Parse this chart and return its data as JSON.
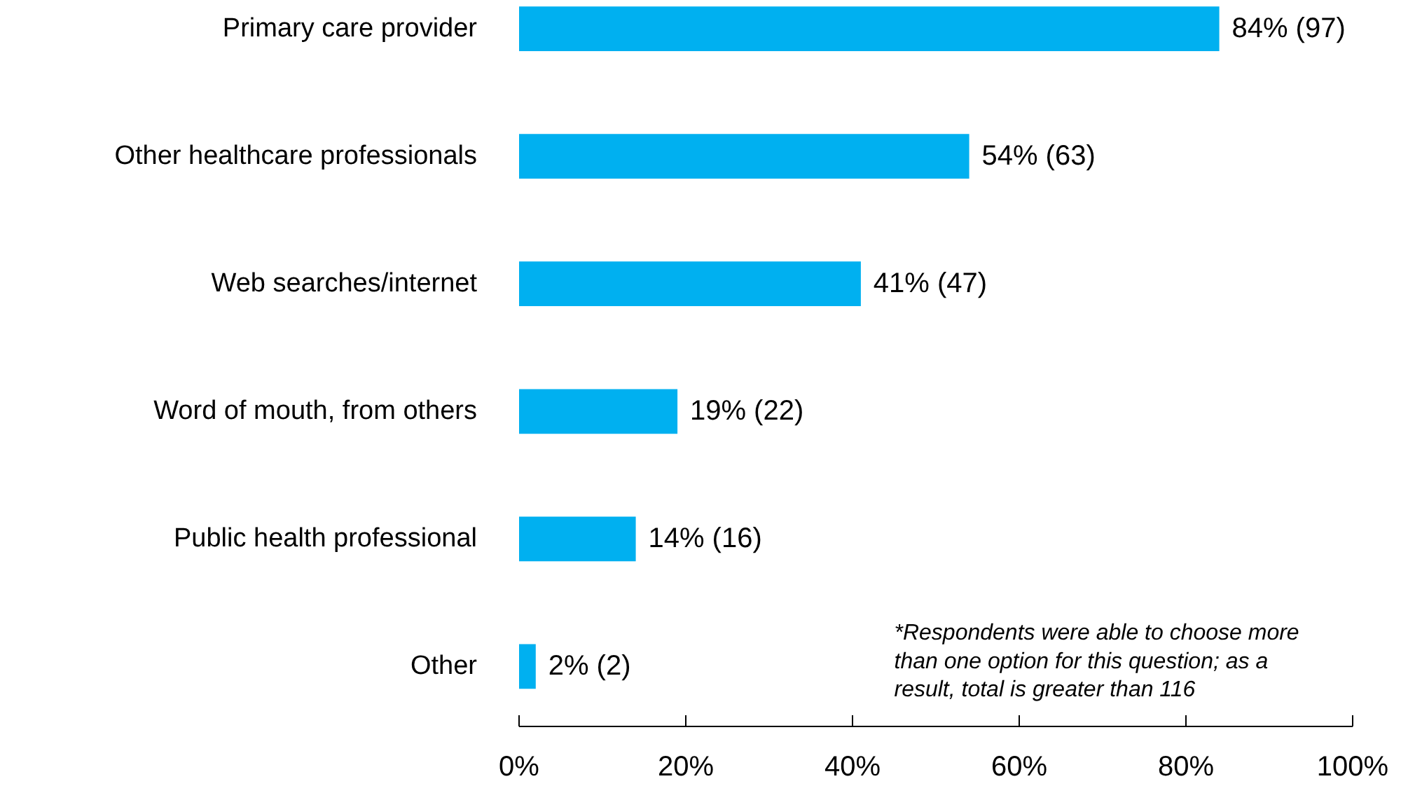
{
  "chart_data": {
    "type": "bar",
    "orientation": "horizontal",
    "categories": [
      "Primary care provider",
      "Other healthcare professionals",
      "Web searches/internet",
      "Word of mouth, from others",
      "Public health professional",
      "Other"
    ],
    "values": [
      84,
      54,
      41,
      19,
      14,
      2
    ],
    "color": "#00b0f0",
    "value_labels": [
      "84%  (97)",
      "54%  (63)",
      "41%  (47)",
      "19% (22)",
      "14%  (16)",
      "2% (2)"
    ],
    "xlim": [
      0,
      100
    ],
    "xticks": [
      {
        "value": 0,
        "label": "0%"
      },
      {
        "value": 20,
        "label": "20%"
      },
      {
        "value": 40,
        "label": "40%"
      },
      {
        "value": 60,
        "label": "60%"
      },
      {
        "value": 80,
        "label": "80%"
      },
      {
        "value": 100,
        "label": "100%"
      }
    ],
    "grid": false,
    "annotations": [
      "*Respondents were able to choose more than one option for this question; as a result, total is greater than 116"
    ]
  }
}
